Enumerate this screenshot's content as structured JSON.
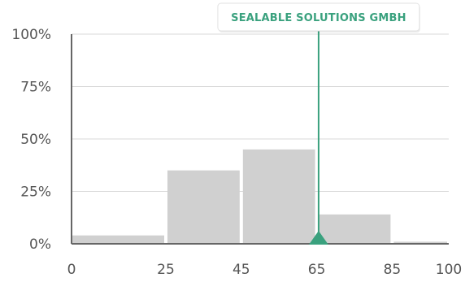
{
  "chart_data": {
    "type": "bar",
    "title": "",
    "xlabel": "",
    "ylabel": "",
    "bins": [
      {
        "start": 0,
        "end": 25,
        "value": 4
      },
      {
        "start": 25,
        "end": 45,
        "value": 35
      },
      {
        "start": 45,
        "end": 65,
        "value": 45
      },
      {
        "start": 65,
        "end": 85,
        "value": 14
      },
      {
        "start": 85,
        "end": 100,
        "value": 1
      }
    ],
    "x_ticks": [
      {
        "value": 0,
        "label": "0"
      },
      {
        "value": 25,
        "label": "25"
      },
      {
        "value": 45,
        "label": "45"
      },
      {
        "value": 65,
        "label": "65"
      },
      {
        "value": 85,
        "label": "85"
      },
      {
        "value": 100,
        "label": "100"
      }
    ],
    "y_ticks": [
      {
        "value": 0,
        "label": "0%"
      },
      {
        "value": 25,
        "label": "25%"
      },
      {
        "value": 50,
        "label": "50%"
      },
      {
        "value": 75,
        "label": "75%"
      },
      {
        "value": 100,
        "label": "100%"
      }
    ],
    "xlim": [
      0,
      100
    ],
    "ylim": [
      0,
      100
    ],
    "grid": true,
    "bar_color": "#d0d0d0",
    "marker": {
      "label": "SEALABLE SOLUTIONS GMBH",
      "x": 65.5,
      "color": "#3aa17e"
    }
  }
}
